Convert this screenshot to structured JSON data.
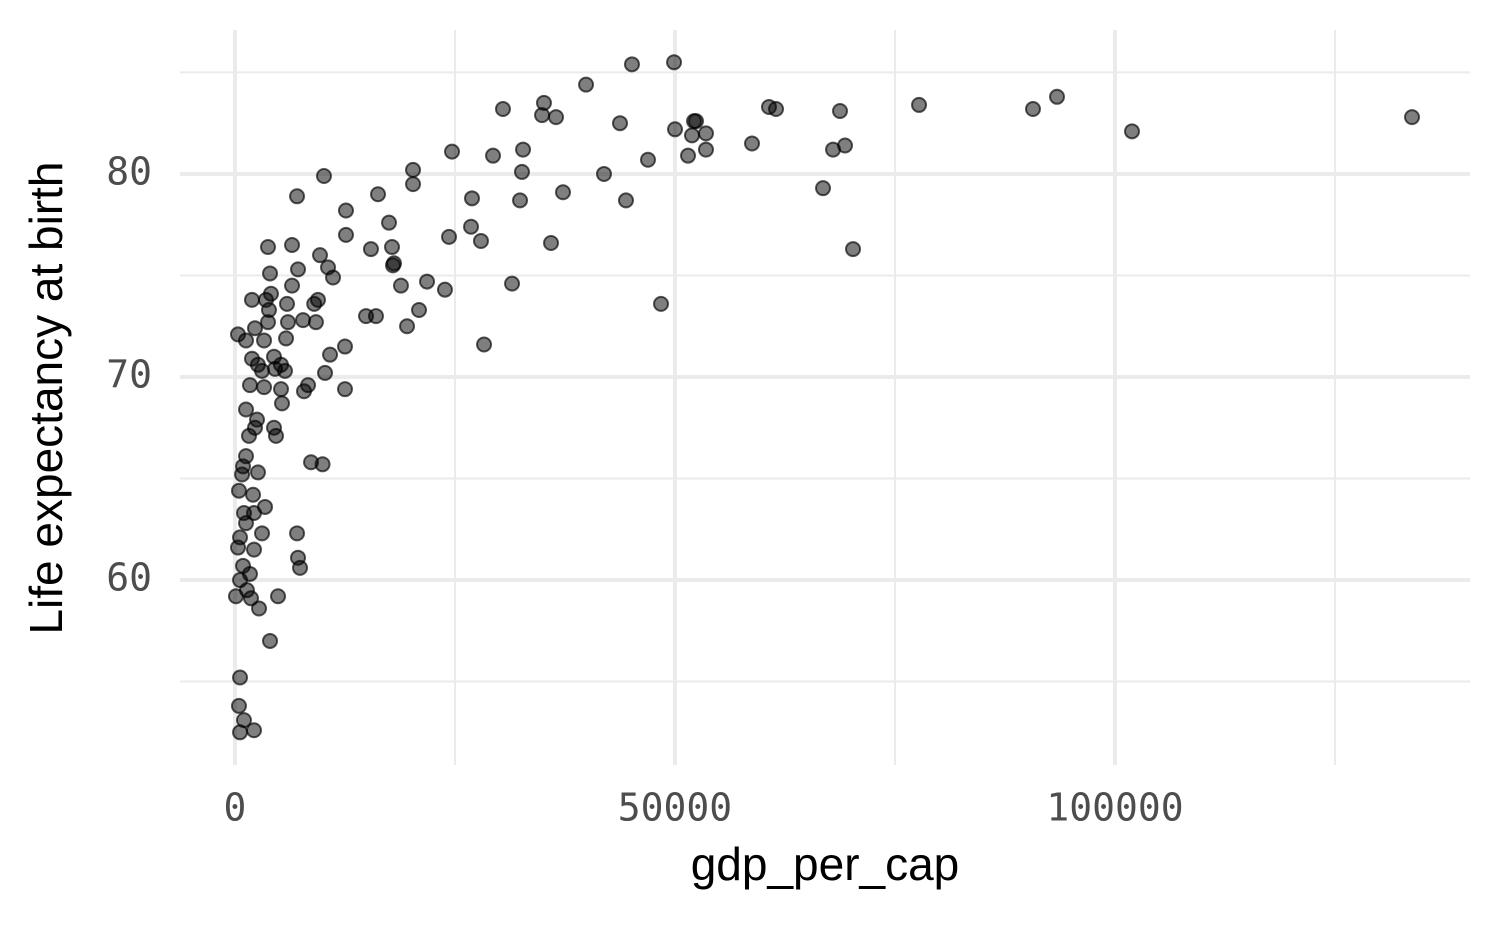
{
  "chart_data": {
    "type": "scatter",
    "x_label": "gdp_per_cap",
    "y_label": "Life expectancy at birth",
    "color": "#000000",
    "opacity": 0.5,
    "grid": true,
    "xlim": [
      -6250,
      140340
    ],
    "ylim": [
      50.89,
      87.09
    ],
    "xticks": [
      0,
      50000,
      100000
    ],
    "yticks": [
      60,
      70,
      80
    ],
    "x_minor_ticks": [
      25000,
      75000,
      125000
    ],
    "y_minor_ticks": [
      55,
      65,
      75,
      85
    ],
    "x": [
      133750,
      101930,
      93410,
      90680,
      77730,
      70230,
      69320,
      68750,
      67960,
      66820,
      61480,
      60680,
      58750,
      49890,
      45110,
      39890,
      48410,
      50000,
      51480,
      51930,
      52160,
      52390,
      53520,
      53520,
      46930,
      43750,
      41930,
      44430,
      37270,
      36480,
      35110,
      34890,
      35910,
      32730,
      32610,
      32390,
      31480,
      30450,
      29320,
      28300,
      27950,
      26930,
      26820,
      24660,
      24320,
      23860,
      21820,
      20910,
      20230,
      20230,
      19550,
      18860,
      18070,
      17950,
      17840,
      17500,
      16250,
      16020,
      15450,
      14890,
      12610,
      12610,
      12500,
      12500,
      11140,
      10800,
      10570,
      10230,
      10110,
      9660,
      9950,
      9430,
      9200,
      9000,
      8640,
      8300,
      7840,
      7730,
      7160,
      7050,
      7050,
      7160,
      7390,
      6480,
      6480,
      6020,
      5800,
      5910,
      5680,
      5230,
      5230,
      5340,
      4890,
      4660,
      4430,
      4430,
      4550,
      3980,
      4090,
      3750,
      3520,
      3860,
      3750,
      3300,
      3300,
      3070,
      3410,
      3070,
      3980,
      2610,
      2270,
      2500,
      2270,
      2610,
      2730,
      1930,
      1930,
      1700,
      1590,
      2050,
      2160,
      2160,
      2160,
      1250,
      1250,
      1250,
      910,
      1020,
      570,
      570,
      1020,
      450,
      570,
      340,
      450,
      340,
      110,
      570,
      910,
      1360,
      1700,
      1250,
      800,
      1820
    ],
    "values": [
      82.8,
      82.1,
      83.8,
      83.2,
      83.4,
      76.3,
      81.4,
      83.1,
      81.2,
      79.3,
      83.2,
      83.3,
      81.5,
      85.5,
      85.4,
      84.4,
      73.6,
      82.2,
      80.9,
      81.9,
      82.6,
      82.6,
      82.0,
      81.2,
      80.7,
      82.5,
      80.0,
      78.7,
      79.1,
      82.8,
      83.5,
      82.9,
      76.6,
      81.2,
      80.1,
      78.7,
      74.6,
      83.2,
      80.9,
      71.6,
      76.7,
      78.8,
      77.4,
      81.1,
      76.9,
      74.3,
      74.7,
      73.3,
      80.2,
      79.5,
      72.5,
      74.5,
      75.6,
      75.5,
      76.4,
      77.6,
      79.0,
      73.0,
      76.3,
      73.0,
      78.2,
      77.0,
      71.5,
      69.4,
      74.9,
      71.1,
      75.4,
      70.2,
      79.9,
      76.0,
      65.7,
      73.8,
      72.7,
      73.6,
      65.8,
      69.6,
      69.3,
      72.8,
      75.3,
      78.9,
      62.3,
      61.1,
      60.6,
      76.5,
      74.5,
      72.7,
      71.9,
      73.6,
      70.3,
      70.6,
      69.4,
      68.7,
      59.2,
      67.1,
      67.5,
      71.0,
      70.4,
      75.1,
      74.1,
      76.4,
      73.8,
      73.3,
      72.7,
      71.8,
      69.5,
      70.3,
      63.6,
      62.3,
      57.0,
      70.6,
      72.4,
      67.9,
      67.5,
      65.3,
      58.6,
      73.8,
      70.9,
      69.6,
      67.1,
      64.2,
      63.3,
      61.5,
      52.6,
      71.8,
      68.4,
      66.1,
      65.6,
      63.3,
      62.1,
      55.2,
      53.1,
      53.8,
      52.5,
      72.1,
      64.4,
      61.6,
      59.2,
      60.0,
      60.7,
      59.5,
      60.3,
      62.8,
      65.2,
      59.1
    ]
  }
}
